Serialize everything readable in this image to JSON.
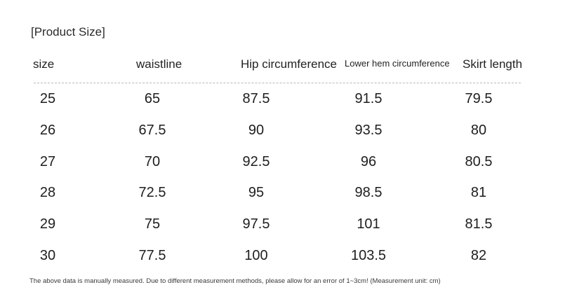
{
  "title": "[Product Size]",
  "headers": [
    "size",
    "waistline",
    "Hip circumference",
    "Lower hem circumference",
    "Skirt length"
  ],
  "rows": [
    [
      "25",
      "65",
      "87.5",
      "91.5",
      "79.5"
    ],
    [
      "26",
      "67.5",
      "90",
      "93.5",
      "80"
    ],
    [
      "27",
      "70",
      "92.5",
      "96",
      "80.5"
    ],
    [
      "28",
      "72.5",
      "95",
      "98.5",
      "81"
    ],
    [
      "29",
      "75",
      "97.5",
      "101",
      "81.5"
    ],
    [
      "30",
      "77.5",
      "100",
      "103.5",
      "82"
    ]
  ],
  "footnote": "The above data is manually measured. Due to different measurement methods, please allow for an error of 1~3cm! (Measurement unit: cm)"
}
